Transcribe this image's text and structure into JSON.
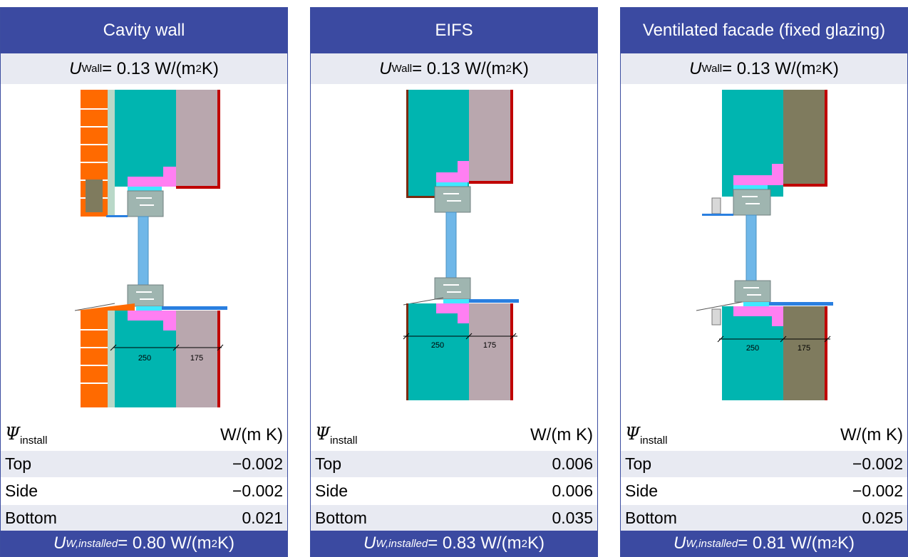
{
  "unit_wall": "W/(m",
  "unit_wall_exp": "2",
  "unit_wall_close": " K)",
  "u_wall_symbol": "U",
  "u_wall_sub": "Wall",
  "psi_symbol": "Ψ",
  "psi_sub": "install",
  "psi_unit": "W/(m K)",
  "u_inst_symbol": "U",
  "u_inst_sub": "W,installed",
  "panels": [
    {
      "title": "Cavity wall",
      "u_wall_value": " = 0.13",
      "dim_left": "250",
      "dim_right": "175",
      "rows": [
        {
          "label": "Top",
          "value": "−0.002"
        },
        {
          "label": "Side",
          "value": "−0.002"
        },
        {
          "label": "Bottom",
          "value": "0.021"
        }
      ],
      "u_installed_value": " = 0.80"
    },
    {
      "title": "EIFS",
      "u_wall_value": " = 0.13",
      "dim_left": "250",
      "dim_right": "175",
      "rows": [
        {
          "label": "Top",
          "value": "0.006"
        },
        {
          "label": "Side",
          "value": "0.006"
        },
        {
          "label": "Bottom",
          "value": "0.035"
        }
      ],
      "u_installed_value": " = 0.83"
    },
    {
      "title": "Ventilated facade (fixed glazing)",
      "u_wall_value": " = 0.13",
      "dim_left": "250",
      "dim_right": "175",
      "rows": [
        {
          "label": "Top",
          "value": "−0.002"
        },
        {
          "label": "Side",
          "value": "−0.002"
        },
        {
          "label": "Bottom",
          "value": "0.025"
        }
      ],
      "u_installed_value": " = 0.81"
    }
  ],
  "colors": {
    "header_blue": "#3b4aa1",
    "light_row": "#e8eaf2",
    "insulation_teal": "#00b5b0",
    "masonry_mauve": "#b9a7ae",
    "concrete_olive": "#7f7b5e",
    "brick_orange": "#ff6a00",
    "seal_pink": "#ff7ff2",
    "frame_grey": "#9fb5b0",
    "glass_blue": "#6fb7e8",
    "interior_red": "#c00000",
    "sill_blue": "#2a7fe0"
  }
}
